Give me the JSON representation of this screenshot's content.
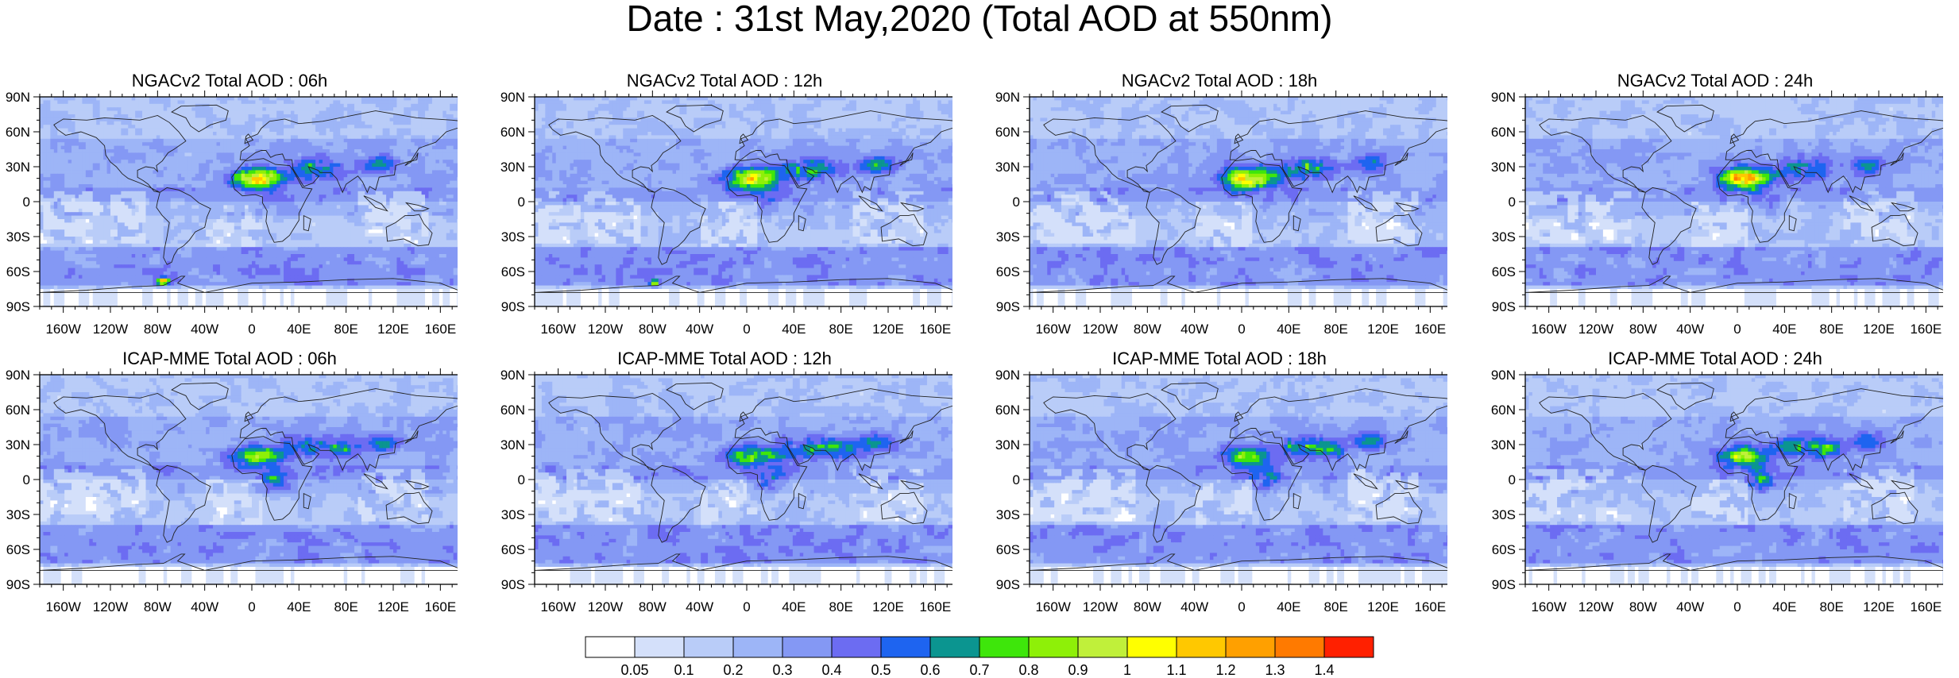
{
  "title": "Date : 31st May,2020 (Total AOD at 550nm)",
  "x_ticks": [
    "160W",
    "120W",
    "80W",
    "40W",
    "0",
    "40E",
    "80E",
    "120E",
    "160E"
  ],
  "x_tick_lons": [
    -160,
    -120,
    -80,
    -40,
    0,
    40,
    80,
    120,
    160
  ],
  "y_ticks": [
    "90N",
    "60N",
    "30N",
    "0",
    "30S",
    "60S",
    "90S"
  ],
  "y_tick_lats": [
    90,
    60,
    30,
    0,
    -30,
    -60,
    -90
  ],
  "colors": {
    "levels": [
      "#ffffff",
      "#d4e0fa",
      "#b9ccf8",
      "#9db5f7",
      "#8498f4",
      "#6c6cf2",
      "#1e64f0",
      "#0b9590",
      "#3ee60b",
      "#8ef008",
      "#c0f03a",
      "#ffff00",
      "#ffc800",
      "#ffa000",
      "#ff7a00",
      "#ff2000"
    ],
    "coast": "#222222"
  },
  "chart_data": [
    {
      "type": "heatmap",
      "title": "NGACv2 Total AOD : 06h",
      "variable": "Total AOD at 550nm",
      "lon_range": [
        -180,
        180
      ],
      "lat_range": [
        -90,
        90
      ]
    },
    {
      "type": "heatmap",
      "title": "NGACv2 Total AOD : 12h",
      "variable": "Total AOD at 550nm",
      "lon_range": [
        -180,
        180
      ],
      "lat_range": [
        -90,
        90
      ]
    },
    {
      "type": "heatmap",
      "title": "NGACv2 Total AOD : 18h",
      "variable": "Total AOD at 550nm",
      "lon_range": [
        -180,
        180
      ],
      "lat_range": [
        -90,
        90
      ]
    },
    {
      "type": "heatmap",
      "title": "NGACv2 Total AOD : 24h",
      "variable": "Total AOD at 550nm",
      "lon_range": [
        -180,
        180
      ],
      "lat_range": [
        -90,
        90
      ]
    },
    {
      "type": "heatmap",
      "title": "ICAP-MME Total AOD : 06h",
      "variable": "Total AOD at 550nm",
      "lon_range": [
        -180,
        180
      ],
      "lat_range": [
        -90,
        90
      ]
    },
    {
      "type": "heatmap",
      "title": "ICAP-MME Total AOD : 12h",
      "variable": "Total AOD at 550nm",
      "lon_range": [
        -180,
        180
      ],
      "lat_range": [
        -90,
        90
      ]
    },
    {
      "type": "heatmap",
      "title": "ICAP-MME Total AOD : 18h",
      "variable": "Total AOD at 550nm",
      "lon_range": [
        -180,
        180
      ],
      "lat_range": [
        -90,
        90
      ]
    },
    {
      "type": "heatmap",
      "title": "ICAP-MME Total AOD : 24h",
      "variable": "Total AOD at 550nm",
      "lon_range": [
        -180,
        180
      ],
      "lat_range": [
        -90,
        90
      ]
    }
  ],
  "colorbar": {
    "labels": [
      "0.05",
      "0.1",
      "0.2",
      "0.3",
      "0.4",
      "0.5",
      "0.6",
      "0.7",
      "0.8",
      "0.9",
      "1",
      "1.1",
      "1.2",
      "1.3",
      "1.4"
    ]
  }
}
